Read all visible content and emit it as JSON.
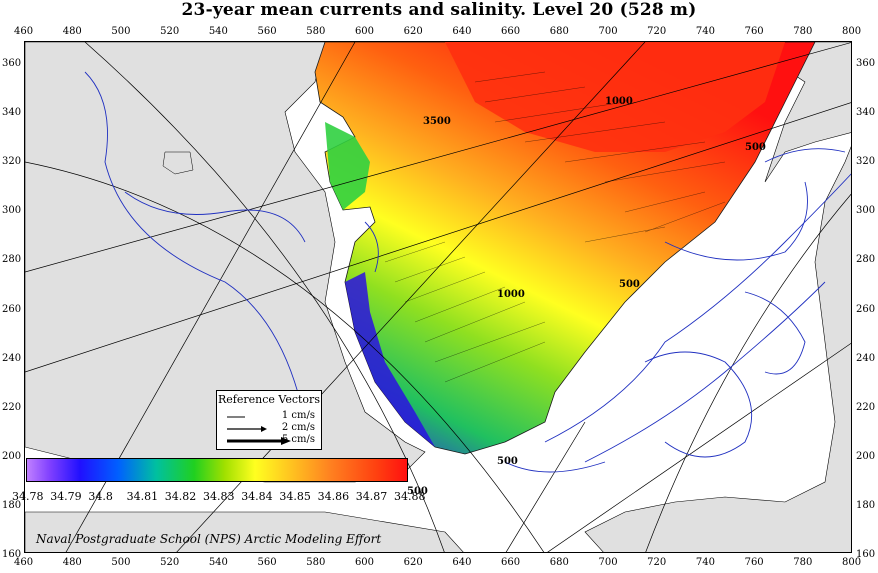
{
  "title": "23-year mean currents and salinity. Level  20 (528 m)",
  "x_ticks": [
    "460",
    "480",
    "500",
    "520",
    "540",
    "560",
    "580",
    "600",
    "620",
    "640",
    "660",
    "680",
    "700",
    "720",
    "740",
    "760",
    "780",
    "800"
  ],
  "y_ticks": [
    "360",
    "340",
    "320",
    "300",
    "280",
    "260",
    "240",
    "220",
    "200",
    "180",
    "160"
  ],
  "legend": {
    "title": "Reference Vectors",
    "rows": [
      "1 cm/s",
      "2 cm/s",
      "5 cm/s"
    ]
  },
  "colorbar": {
    "labels": [
      "34.78",
      "34.79",
      "34.8",
      "34.81",
      "34.82",
      "34.83",
      "34.84",
      "34.85",
      "34.86",
      "34.87",
      "34.88"
    ]
  },
  "contours": {
    "labels": [
      "3500",
      "1000",
      "500",
      "500",
      "1000",
      "500",
      "500"
    ]
  },
  "credit": "Naval Postgraduate School (NPS) Arctic Modeling Effort",
  "colors": {
    "land": "#e0e0e0",
    "contour": "#2030c0",
    "high_salinity": "#ff2010",
    "low_salinity": "#3010ff"
  }
}
